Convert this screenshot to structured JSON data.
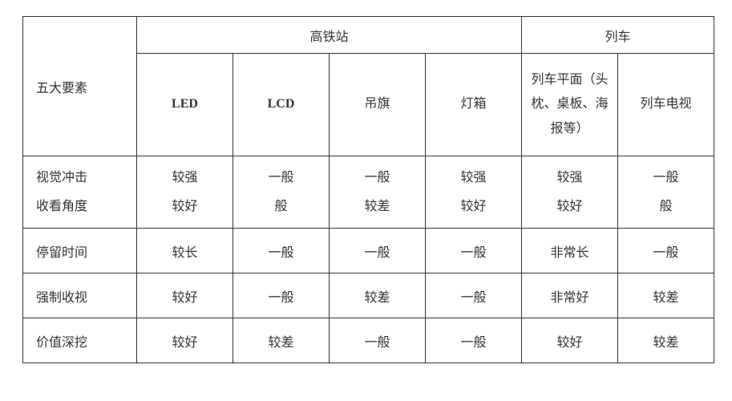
{
  "header": {
    "rowLabel": "五大要素",
    "group1": "高铁站",
    "group2": "列车",
    "cols": {
      "c1": "LED",
      "c2": "LCD",
      "c3": "吊旗",
      "c4": "灯箱",
      "c5": "列车平面（头枕、桌板、海报等）",
      "c6": "列车电视"
    }
  },
  "rows": {
    "r1": {
      "labelA": "视觉冲击",
      "labelB": "收看角度",
      "c1a": "较强",
      "c1b": "较好",
      "c2a": "一般",
      "c2b": "般",
      "c3a": "一般",
      "c3b": "较差",
      "c4a": "较强",
      "c4b": "较好",
      "c5a": "较强",
      "c5b": "较好",
      "c6a": "一般",
      "c6b": "般"
    },
    "r2": {
      "label": "停留时间",
      "c1": "较长",
      "c2": "一般",
      "c3": "一般",
      "c4": "一般",
      "c5": "非常长",
      "c6": "一般"
    },
    "r3": {
      "label": "强制收视",
      "c1": "较好",
      "c2": "一般",
      "c3": "较差",
      "c4": "一般",
      "c5": "非常好",
      "c6": "较差"
    },
    "r4": {
      "label": "价值深挖",
      "c1": "较好",
      "c2": "较差",
      "c3": "一般",
      "c4": "一般",
      "c5": "较好",
      "c6": "较差"
    }
  },
  "style": {
    "border_color": "#333333",
    "text_color": "#333333",
    "background": "#ffffff",
    "body_fontsize": 16,
    "header_bold_cols": [
      "c1",
      "c2"
    ]
  }
}
